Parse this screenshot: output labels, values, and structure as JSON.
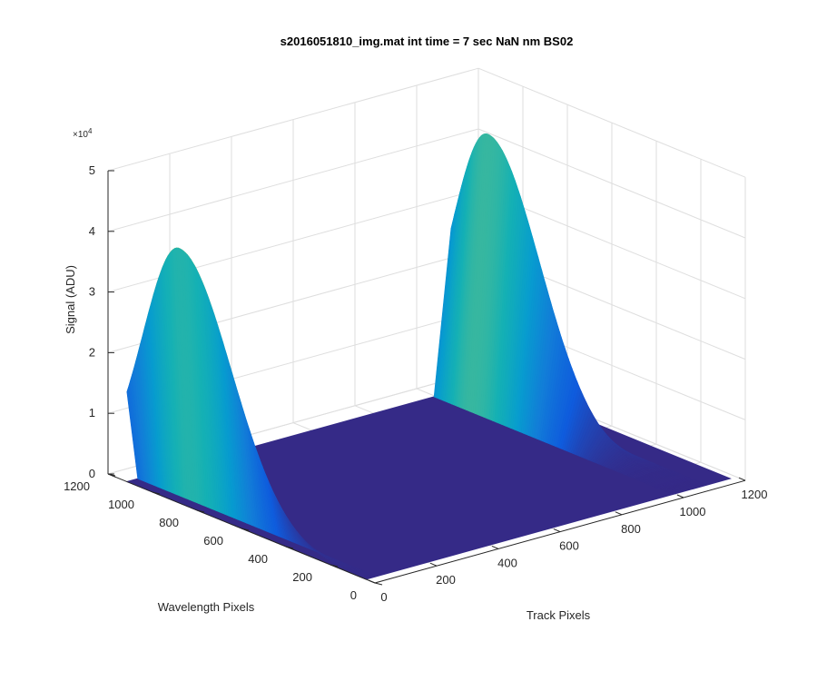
{
  "chart_data": {
    "type": "surface",
    "title": "s2016051810_img.mat int time = 7 sec  NaN nm BS02",
    "xlabel": "Track Pixels",
    "ylabel": "Wavelength Pixels",
    "zlabel": "Signal (ADU)",
    "zexponent_base": "×10",
    "zexponent_power": "4",
    "xlim": [
      0,
      1200
    ],
    "ylim": [
      0,
      1200
    ],
    "zlim": [
      0,
      50000
    ],
    "xticks": [
      0,
      200,
      400,
      600,
      800,
      1000,
      1200
    ],
    "yticks": [
      0,
      200,
      400,
      600,
      800,
      1000,
      1200
    ],
    "zticks": [
      0,
      1,
      2,
      3,
      4,
      5
    ],
    "colormap": "parula",
    "ridges": [
      {
        "track_pixel": 0,
        "peak_signal": 42000
      },
      {
        "track_pixel": 1050,
        "peak_signal": 45000
      }
    ],
    "floor_signal": 0,
    "grid": true
  }
}
